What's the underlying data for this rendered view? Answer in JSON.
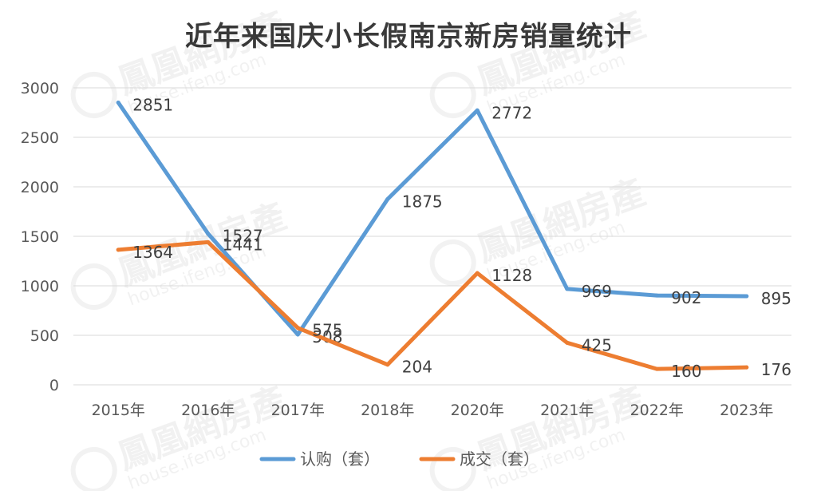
{
  "chart_data": {
    "type": "line",
    "title": "近年来国庆小长假南京新房销量统计",
    "categories": [
      "2015年",
      "2016年",
      "2017年",
      "2018年",
      "2020年",
      "2021年",
      "2022年",
      "2023年"
    ],
    "series": [
      {
        "name": "认购（套）",
        "color": "#5B9BD5",
        "values": [
          2851,
          1527,
          508,
          1875,
          2772,
          969,
          902,
          895
        ]
      },
      {
        "name": "成交（套）",
        "color": "#ED7D31",
        "values": [
          1364,
          1441,
          575,
          204,
          1128,
          425,
          160,
          176
        ]
      }
    ],
    "yticks": [
      0,
      500,
      1000,
      1500,
      2000,
      2500,
      3000
    ],
    "ylim": [
      0,
      3000
    ],
    "grid": true,
    "legend": "bottom",
    "xlabel": "",
    "ylabel": ""
  },
  "watermark": {
    "text": "鳳凰網房產",
    "subtext": "house.ifeng.com"
  }
}
